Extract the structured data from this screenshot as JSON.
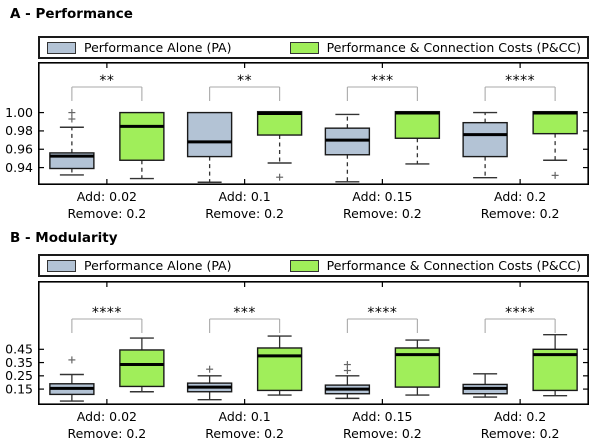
{
  "colors": {
    "pa_fill": "#B3C3D5",
    "pcc_fill": "#A0EE5A",
    "box_edge": "#1a1a1a",
    "median": "#000000",
    "whisker": "#333333",
    "outlier": "#666666",
    "bracket": "#aaaaaa",
    "stars": "#333333",
    "axis": "#000000"
  },
  "chart_data": [
    {
      "type": "boxplot",
      "panel": "A",
      "title": "A - Performance",
      "legend": [
        "Performance Alone (PA)",
        "Performance & Connection Costs (P&CC)"
      ],
      "ylim": [
        0.921,
        1.053
      ],
      "yticks": [
        0.94,
        0.96,
        0.98,
        1.0
      ],
      "whisker_style": "dashed",
      "groups": [
        {
          "label_add": "Add: 0.02",
          "label_remove": "Remove: 0.2",
          "significance": "**",
          "pa": {
            "whisker_low": 0.932,
            "q1": 0.939,
            "median": 0.9525,
            "q3": 0.956,
            "whisker_high": 0.984,
            "outliers": [
              0.993,
              1.0
            ]
          },
          "pcc": {
            "whisker_low": 0.928,
            "q1": 0.948,
            "median": 0.985,
            "q3": 1.0,
            "whisker_high": null,
            "outliers": []
          }
        },
        {
          "label_add": "Add: 0.1",
          "label_remove": "Remove: 0.2",
          "significance": "**",
          "pa": {
            "whisker_low": 0.924,
            "q1": 0.952,
            "median": 0.968,
            "q3": 1.0,
            "whisker_high": null,
            "outliers": []
          },
          "pcc": {
            "whisker_low": 0.945,
            "q1": 0.9755,
            "median": 0.999,
            "q3": 1.001,
            "whisker_high": null,
            "outliers": [
              0.9295
            ]
          }
        },
        {
          "label_add": "Add: 0.15",
          "label_remove": "Remove: 0.2",
          "significance": "***",
          "pa": {
            "whisker_low": 0.9245,
            "q1": 0.954,
            "median": 0.97,
            "q3": 0.983,
            "whisker_high": 0.998,
            "outliers": []
          },
          "pcc": {
            "whisker_low": 0.944,
            "q1": 0.972,
            "median": 0.9995,
            "q3": 1.001,
            "whisker_high": null,
            "outliers": []
          }
        },
        {
          "label_add": "Add: 0.2",
          "label_remove": "Remove: 0.2",
          "significance": "****",
          "pa": {
            "whisker_low": 0.929,
            "q1": 0.952,
            "median": 0.976,
            "q3": 0.989,
            "whisker_high": 1.0,
            "outliers": []
          },
          "pcc": {
            "whisker_low": 0.948,
            "q1": 0.977,
            "median": 0.9995,
            "q3": 1.001,
            "whisker_high": null,
            "outliers": [
              0.9315
            ]
          }
        }
      ]
    },
    {
      "type": "boxplot",
      "panel": "B",
      "title": "B - Modularity",
      "legend": [
        "Performance Alone (PA)",
        "Performance & Connection Costs (P&CC)"
      ],
      "ylim": [
        0.03,
        0.95
      ],
      "yticks": [
        0.15,
        0.25,
        0.35,
        0.45
      ],
      "whisker_style": "solid",
      "groups": [
        {
          "label_add": "Add: 0.02",
          "label_remove": "Remove: 0.2",
          "significance": "****",
          "pa": {
            "whisker_low": 0.06,
            "q1": 0.11,
            "median": 0.155,
            "q3": 0.19,
            "whisker_high": 0.26,
            "outliers": [
              0.37
            ]
          },
          "pcc": {
            "whisker_low": 0.13,
            "q1": 0.17,
            "median": 0.335,
            "q3": 0.445,
            "whisker_high": 0.535,
            "outliers": []
          }
        },
        {
          "label_add": "Add: 0.1",
          "label_remove": "Remove: 0.2",
          "significance": "***",
          "pa": {
            "whisker_low": 0.07,
            "q1": 0.13,
            "median": 0.165,
            "q3": 0.195,
            "whisker_high": 0.25,
            "outliers": [
              0.3
            ]
          },
          "pcc": {
            "whisker_low": 0.105,
            "q1": 0.14,
            "median": 0.4,
            "q3": 0.46,
            "whisker_high": 0.55,
            "outliers": []
          }
        },
        {
          "label_add": "Add: 0.15",
          "label_remove": "Remove: 0.2",
          "significance": "****",
          "pa": {
            "whisker_low": 0.08,
            "q1": 0.115,
            "median": 0.15,
            "q3": 0.18,
            "whisker_high": 0.25,
            "outliers": [
              0.29,
              0.335
            ]
          },
          "pcc": {
            "whisker_low": 0.105,
            "q1": 0.165,
            "median": 0.41,
            "q3": 0.46,
            "whisker_high": 0.52,
            "outliers": []
          }
        },
        {
          "label_add": "Add: 0.2",
          "label_remove": "Remove: 0.2",
          "significance": "****",
          "pa": {
            "whisker_low": 0.09,
            "q1": 0.115,
            "median": 0.155,
            "q3": 0.185,
            "whisker_high": 0.265,
            "outliers": []
          },
          "pcc": {
            "whisker_low": 0.1,
            "q1": 0.14,
            "median": 0.41,
            "q3": 0.45,
            "whisker_high": 0.56,
            "outliers": []
          }
        }
      ]
    }
  ]
}
